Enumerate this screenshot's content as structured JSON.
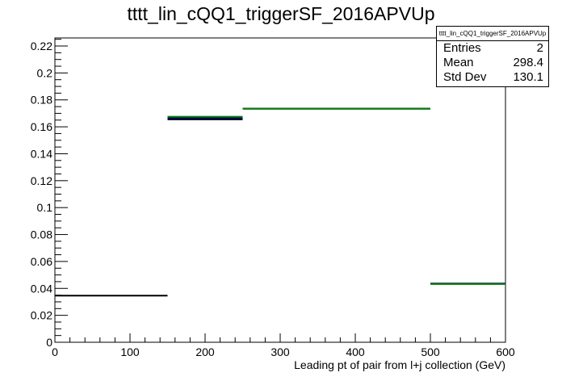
{
  "chart_data": {
    "type": "histogram",
    "title": "tttt_lin_cQQ1_triggerSF_2016APVUp",
    "xlabel": "Leading pt of pair from l+j collection (GeV)",
    "ylabel": "",
    "xlim": [
      0,
      600
    ],
    "ylim": [
      0,
      0.226
    ],
    "x_ticks": [
      "0",
      "100",
      "200",
      "300",
      "400",
      "500",
      "600"
    ],
    "y_ticks": [
      "0",
      "0.02",
      "0.04",
      "0.06",
      "0.08",
      "0.1",
      "0.12",
      "0.14",
      "0.16",
      "0.18",
      "0.2",
      "0.22"
    ],
    "bin_edges": [
      0,
      150,
      250,
      500,
      600
    ],
    "series": [
      {
        "color": "#000000",
        "values": [
          0.0346,
          0.1655,
          0.1735,
          0.0435
        ]
      },
      {
        "color": "#00007f",
        "values": [
          null,
          0.1665,
          0.1735,
          0.0435
        ]
      },
      {
        "color": "#007f00",
        "values": [
          null,
          0.1675,
          0.1735,
          0.0432
        ]
      }
    ],
    "grid": false,
    "stats_box": {
      "name": "tttt_lin_cQQ1_triggerSF_2016APVUp",
      "rows": [
        {
          "label": "Entries",
          "value": "2"
        },
        {
          "label": "Mean",
          "value": "298.4"
        },
        {
          "label": "Std Dev",
          "value": "130.1"
        }
      ]
    }
  }
}
